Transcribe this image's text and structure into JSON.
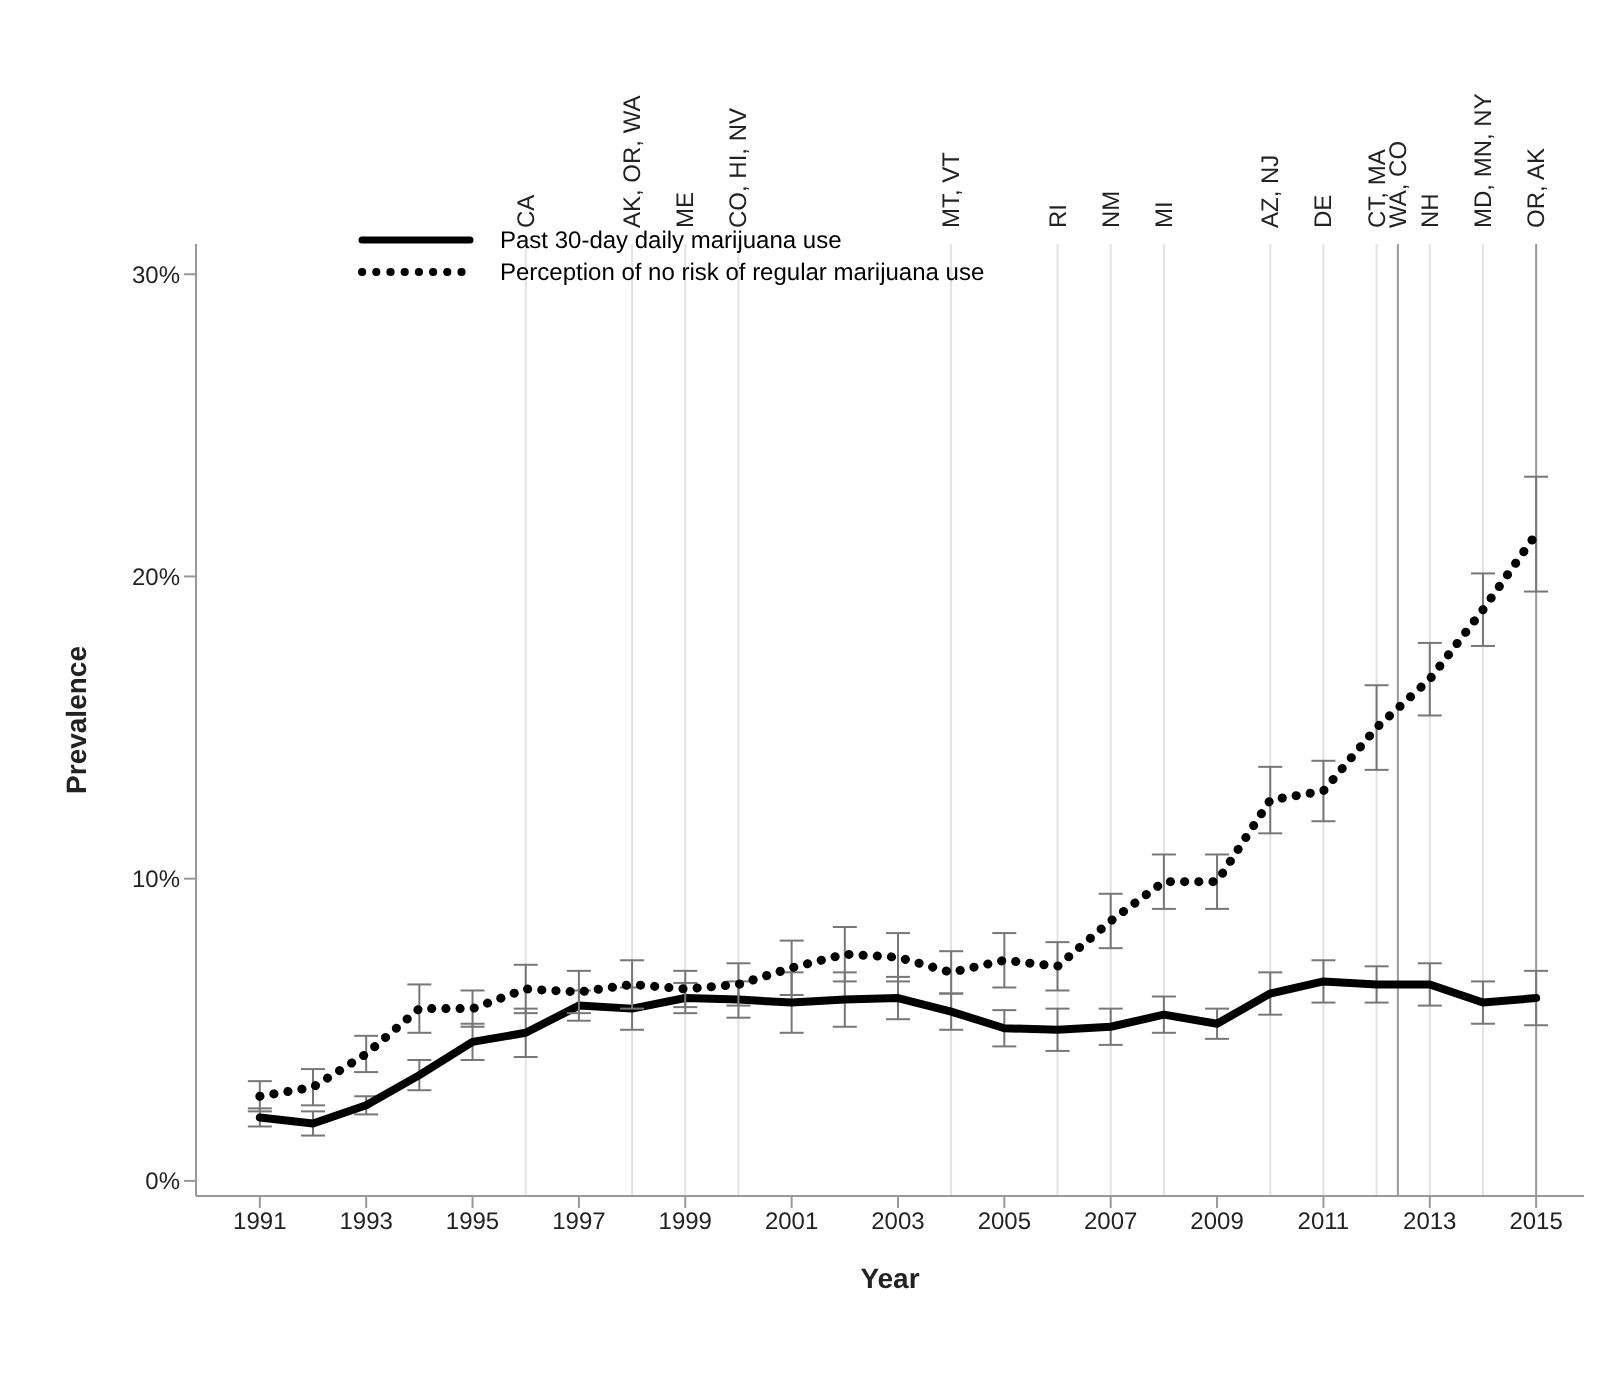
{
  "chart_data": {
    "type": "line",
    "xlabel": "Year",
    "ylabel": "Prevalence",
    "x": [
      1991,
      1992,
      1993,
      1994,
      1995,
      1996,
      1997,
      1998,
      1999,
      2000,
      2001,
      2002,
      2003,
      2004,
      2005,
      2006,
      2007,
      2008,
      2009,
      2010,
      2011,
      2012,
      2013,
      2014,
      2015
    ],
    "series": [
      {
        "name": "Past 30-day daily marijuana use",
        "color": "#000000",
        "line_style": "solid",
        "values": [
          2.1,
          1.9,
          2.5,
          3.5,
          4.6,
          4.9,
          5.8,
          5.7,
          6.05,
          6.0,
          5.9,
          6.0,
          6.05,
          5.6,
          5.05,
          5.0,
          5.1,
          5.5,
          5.2,
          6.2,
          6.6,
          6.5,
          6.5,
          5.9,
          6.05
        ],
        "errors": [
          0.3,
          0.4,
          0.3,
          0.5,
          0.6,
          0.8,
          0.5,
          0.7,
          0.5,
          0.6,
          1.0,
          0.9,
          0.7,
          0.6,
          0.6,
          0.7,
          0.6,
          0.6,
          0.5,
          0.7,
          0.7,
          0.6,
          0.7,
          0.7,
          0.9
        ]
      },
      {
        "name": "Perception of no risk of regular marijuana use",
        "color": "#000000",
        "line_style": "dotted",
        "values": [
          2.8,
          3.1,
          4.2,
          5.7,
          5.7,
          6.35,
          6.25,
          6.5,
          6.35,
          6.5,
          7.05,
          7.5,
          7.4,
          6.9,
          7.3,
          7.1,
          8.6,
          9.9,
          9.9,
          12.6,
          12.9,
          15.0,
          16.6,
          18.9,
          21.4
        ],
        "errors": [
          0.5,
          0.6,
          0.6,
          0.8,
          0.6,
          0.8,
          0.7,
          0.8,
          0.6,
          0.7,
          0.9,
          0.9,
          0.8,
          0.7,
          0.9,
          0.8,
          0.9,
          0.9,
          0.9,
          1.1,
          1.0,
          1.4,
          1.2,
          1.2,
          1.9
        ]
      }
    ],
    "xlim": [
      1989.8,
      2015.9
    ],
    "xticks": [
      1991,
      1993,
      1995,
      1997,
      1999,
      2001,
      2003,
      2005,
      2007,
      2009,
      2011,
      2013,
      2015
    ],
    "ylim": [
      -0.5,
      31
    ],
    "yticks": [
      {
        "value": 0,
        "label": "0%"
      },
      {
        "value": 10,
        "label": "10%"
      },
      {
        "value": 20,
        "label": "20%"
      },
      {
        "value": 30,
        "label": "30%"
      }
    ],
    "ref_lines": [
      {
        "axis": "x",
        "value": 1996,
        "label": "CA",
        "color": "#e2e2e2"
      },
      {
        "axis": "x",
        "value": 1998,
        "label": "AK, OR, WA",
        "color": "#e2e2e2"
      },
      {
        "axis": "x",
        "value": 1999,
        "label": "ME",
        "color": "#e2e2e2"
      },
      {
        "axis": "x",
        "value": 2000,
        "label": "CO, HI, NV",
        "color": "#e2e2e2"
      },
      {
        "axis": "x",
        "value": 2004,
        "label": "MT, VT",
        "color": "#e2e2e2"
      },
      {
        "axis": "x",
        "value": 2006,
        "label": "RI",
        "color": "#e2e2e2"
      },
      {
        "axis": "x",
        "value": 2007,
        "label": "NM",
        "color": "#e2e2e2"
      },
      {
        "axis": "x",
        "value": 2008,
        "label": "MI",
        "color": "#e2e2e2"
      },
      {
        "axis": "x",
        "value": 2010,
        "label": "AZ, NJ",
        "color": "#e2e2e2"
      },
      {
        "axis": "x",
        "value": 2011,
        "label": "DE",
        "color": "#e2e2e2"
      },
      {
        "axis": "x",
        "value": 2012,
        "label": "CT, MA",
        "color": "#e2e2e2"
      },
      {
        "axis": "x",
        "value": 2012.4,
        "label": "WA, CO",
        "color": "#999999"
      },
      {
        "axis": "x",
        "value": 2013,
        "label": "NH",
        "color": "#e2e2e2"
      },
      {
        "axis": "x",
        "value": 2014,
        "label": "MD, MN, NY",
        "color": "#e2e2e2"
      },
      {
        "axis": "x",
        "value": 2015,
        "label": "OR, AK",
        "color": "#999999"
      }
    ],
    "legend": "top",
    "marker": "none",
    "grid": false
  }
}
